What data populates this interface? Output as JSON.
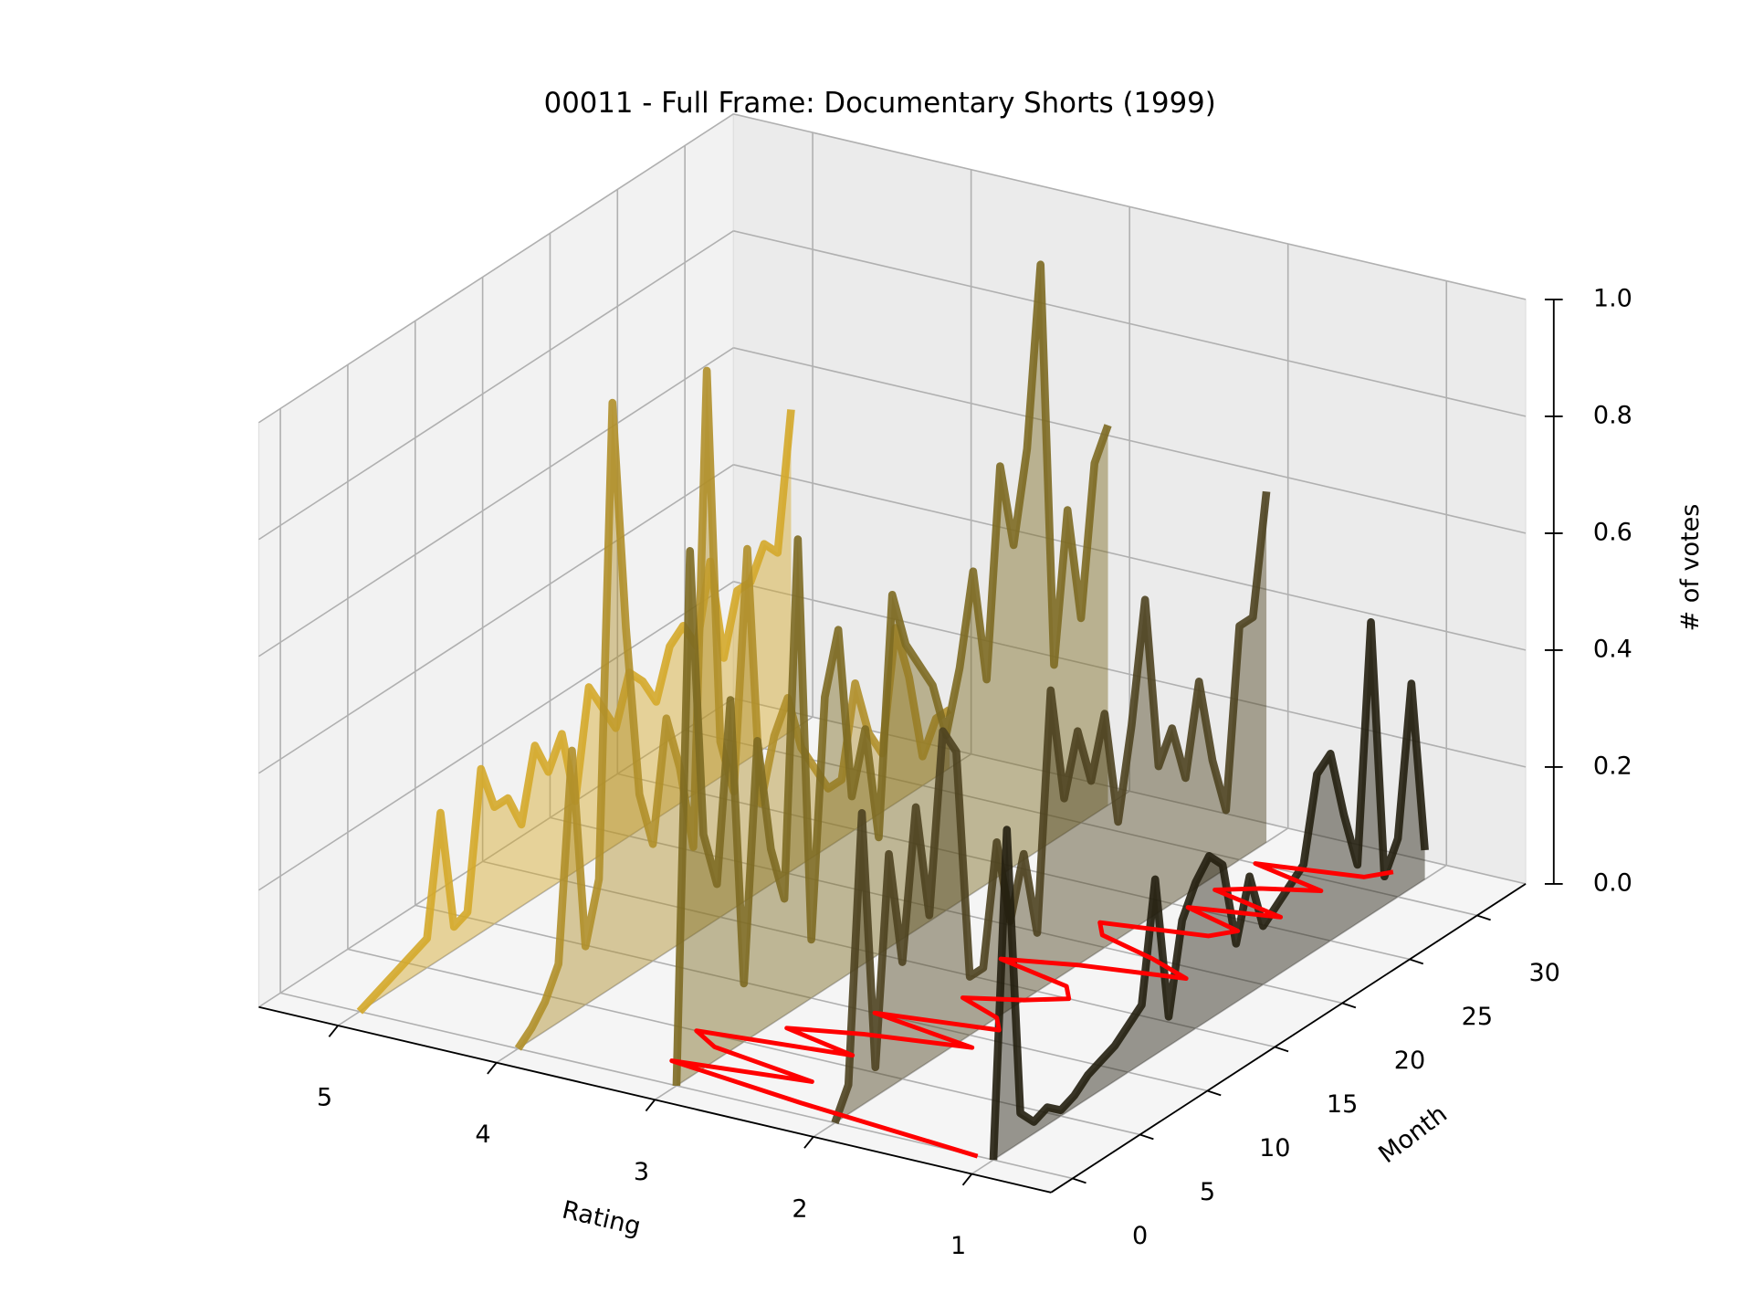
{
  "chart_data": {
    "type": "line3d",
    "title": "00011 - Full Frame: Documentary Shorts (1999)",
    "xlabel": "Rating",
    "ylabel": "Month",
    "zlabel": "# of votes",
    "x": [
      0,
      1,
      2,
      3,
      4,
      5,
      6,
      7,
      8,
      9,
      10,
      11,
      12,
      13,
      14,
      15,
      16,
      17,
      18,
      19,
      20,
      21,
      22,
      23,
      24,
      25,
      26,
      27,
      28,
      29,
      30,
      31,
      32
    ],
    "series": [
      {
        "rating": 5,
        "color": "#d4a92a",
        "values": [
          0,
          0.01,
          0.02,
          0.03,
          0.04,
          0.05,
          0.25,
          0.04,
          0.05,
          0.28,
          0.2,
          0.2,
          0.14,
          0.26,
          0.2,
          0.25,
          0.12,
          0.3,
          0.25,
          0.2,
          0.28,
          0.25,
          0.2,
          0.28,
          0.3,
          0.25,
          0.38,
          0.2,
          0.3,
          0.3,
          0.35,
          0.32,
          0.55
        ]
      },
      {
        "rating": 4,
        "color": "#b08f2a",
        "values": [
          0,
          0.02,
          0.05,
          0.1,
          0.45,
          0.1,
          0.2,
          1.0,
          0.6,
          0.3,
          0.2,
          0.4,
          0.3,
          0.15,
          0.95,
          0.3,
          0.2,
          0.6,
          0.15,
          0.25,
          0.3,
          0.2,
          0.15,
          0.1,
          0.1,
          0.25,
          0.15,
          0.1,
          0.3,
          0.2,
          0.05,
          0.1,
          0.1
        ]
      },
      {
        "rating": 3,
        "color": "#7d6a22",
        "values": [
          0,
          0.9,
          0.4,
          0.3,
          0.6,
          0.1,
          0.5,
          0.3,
          0.2,
          0.8,
          0.1,
          0.5,
          0.6,
          0.3,
          0.4,
          0.2,
          0.6,
          0.5,
          0.45,
          0.4,
          0.3,
          0.4,
          0.55,
          0.35,
          0.7,
          0.55,
          0.7,
          1.0,
          0.3,
          0.55,
          0.35,
          0.6,
          0.65
        ]
      },
      {
        "rating": 2,
        "color": "#4e4220",
        "values": [
          0,
          0.05,
          0.5,
          0.05,
          0.4,
          0.2,
          0.45,
          0.25,
          0.55,
          0.5,
          0.1,
          0.1,
          0.3,
          0.15,
          0.25,
          0.1,
          0.5,
          0.3,
          0.4,
          0.3,
          0.4,
          0.2,
          0.35,
          0.55,
          0.25,
          0.3,
          0.2,
          0.35,
          0.2,
          0.1,
          0.4,
          0.4,
          0.6
        ]
      },
      {
        "rating": 1,
        "color": "#231f10",
        "values": [
          0,
          0.55,
          0.05,
          0.02,
          0.03,
          0.01,
          0.02,
          0.04,
          0.05,
          0.06,
          0.08,
          0.1,
          0.3,
          0.05,
          0.2,
          0.25,
          0.28,
          0.25,
          0.1,
          0.2,
          0.1,
          0.12,
          0.14,
          0.16,
          0.3,
          0.32,
          0.2,
          0.1,
          0.5,
          0.05,
          0.1,
          0.35,
          0.05
        ]
      }
    ],
    "mean_line": {
      "color": "#ff0000",
      "values": [
        1.1,
        2.3,
        3.2,
        2.4,
        3.1,
        3.3,
        2.4,
        2.9,
        2.5,
        1.9,
        2.6,
        1.9,
        2.0,
        2.3,
        2.0,
        1.8,
        1.9,
        2.4,
        2.0,
        1.4,
        1.7,
        2.1,
        2.2,
        1.6,
        1.5,
        1.9,
        1.4,
        1.9,
        1.7,
        1.4,
        1.9,
        1.3,
        1.2
      ]
    },
    "xlim": [
      0.5,
      5.5
    ],
    "ylim": [
      -1.6,
      33.6
    ],
    "zlim": [
      0,
      1
    ],
    "xticks": [
      1,
      2,
      3,
      4,
      5
    ],
    "yticks": [
      0,
      5,
      10,
      15,
      20,
      25,
      30
    ],
    "zticks": [
      {
        "value": 0,
        "label": "0.0"
      },
      0.2,
      0.4,
      0.6,
      0.8,
      {
        "value": 1,
        "label": "1.0"
      }
    ],
    "grid": true
  }
}
